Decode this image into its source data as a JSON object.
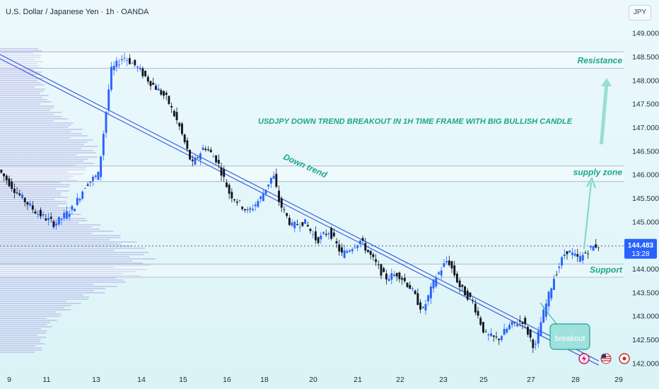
{
  "header": {
    "symbol_title": "U.S. Dollar / Japanese Yen · 1h · OANDA",
    "currency": "JPY"
  },
  "colors": {
    "bull": "#2962ff",
    "bear": "#131722",
    "trend": "#3b5bdb",
    "annotation": "#1ba58e",
    "zone": "#9fb3c8",
    "volume_profile": "#a9a2e0"
  },
  "chart_data": {
    "type": "candlestick",
    "symbol": "USDJPY",
    "timeframe": "1h",
    "ylim": [
      141.9,
      149.4
    ],
    "yticks": [
      142.0,
      142.5,
      143.0,
      143.5,
      144.0,
      144.5,
      145.0,
      145.5,
      146.0,
      146.5,
      147.0,
      147.5,
      148.0,
      148.5,
      149.0
    ],
    "x_tick_labels": [
      "9",
      "11",
      "13",
      "14",
      "15",
      "16",
      "18",
      "20",
      "21",
      "22",
      "23",
      "25",
      "27",
      "28",
      "29"
    ],
    "last_price": "144.483",
    "countdown": "13:28",
    "price_path": [
      [
        0,
        146.1
      ],
      [
        3,
        145.6
      ],
      [
        6,
        145.2
      ],
      [
        9,
        144.95
      ],
      [
        12,
        145.3
      ],
      [
        14,
        145.8
      ],
      [
        16,
        146.0
      ],
      [
        18,
        148.2
      ],
      [
        20,
        148.5
      ],
      [
        22,
        148.3
      ],
      [
        24,
        148.0
      ],
      [
        27,
        147.6
      ],
      [
        29,
        147.0
      ],
      [
        31,
        146.2
      ],
      [
        33,
        146.6
      ],
      [
        35,
        146.3
      ],
      [
        37,
        145.6
      ],
      [
        40,
        145.2
      ],
      [
        42,
        145.5
      ],
      [
        44,
        146.0
      ],
      [
        45,
        145.4
      ],
      [
        47,
        144.9
      ],
      [
        49,
        145.0
      ],
      [
        51,
        144.6
      ],
      [
        53,
        144.8
      ],
      [
        55,
        144.3
      ],
      [
        58,
        144.6
      ],
      [
        60,
        144.2
      ],
      [
        62,
        143.8
      ],
      [
        64,
        143.9
      ],
      [
        66,
        143.6
      ],
      [
        68,
        143.1
      ],
      [
        70,
        143.8
      ],
      [
        72,
        144.2
      ],
      [
        74,
        143.6
      ],
      [
        76,
        143.3
      ],
      [
        78,
        142.6
      ],
      [
        80,
        142.5
      ],
      [
        82,
        142.8
      ],
      [
        84,
        142.9
      ],
      [
        86,
        142.3
      ],
      [
        87,
        142.9
      ],
      [
        89,
        143.8
      ],
      [
        91,
        144.4
      ],
      [
        93,
        144.2
      ],
      [
        95,
        144.45
      ],
      [
        96,
        144.5
      ]
    ],
    "trend_line": {
      "label": "Down trend",
      "from": [
        0,
        148.5
      ],
      "to": [
        96,
        142.0
      ]
    },
    "zones": [
      {
        "label": "Resistance",
        "low": 148.25,
        "high": 148.6
      },
      {
        "label": "supply zone",
        "low": 145.85,
        "high": 146.18
      },
      {
        "label": "Support",
        "low": 143.82,
        "high": 144.1
      }
    ],
    "annotations": {
      "headline": "USDJPY DOWN TREND BREAKOUT IN 1H TIME FRAME WITH BIG BULLISH CANDLE",
      "breakout": "breakout"
    }
  }
}
